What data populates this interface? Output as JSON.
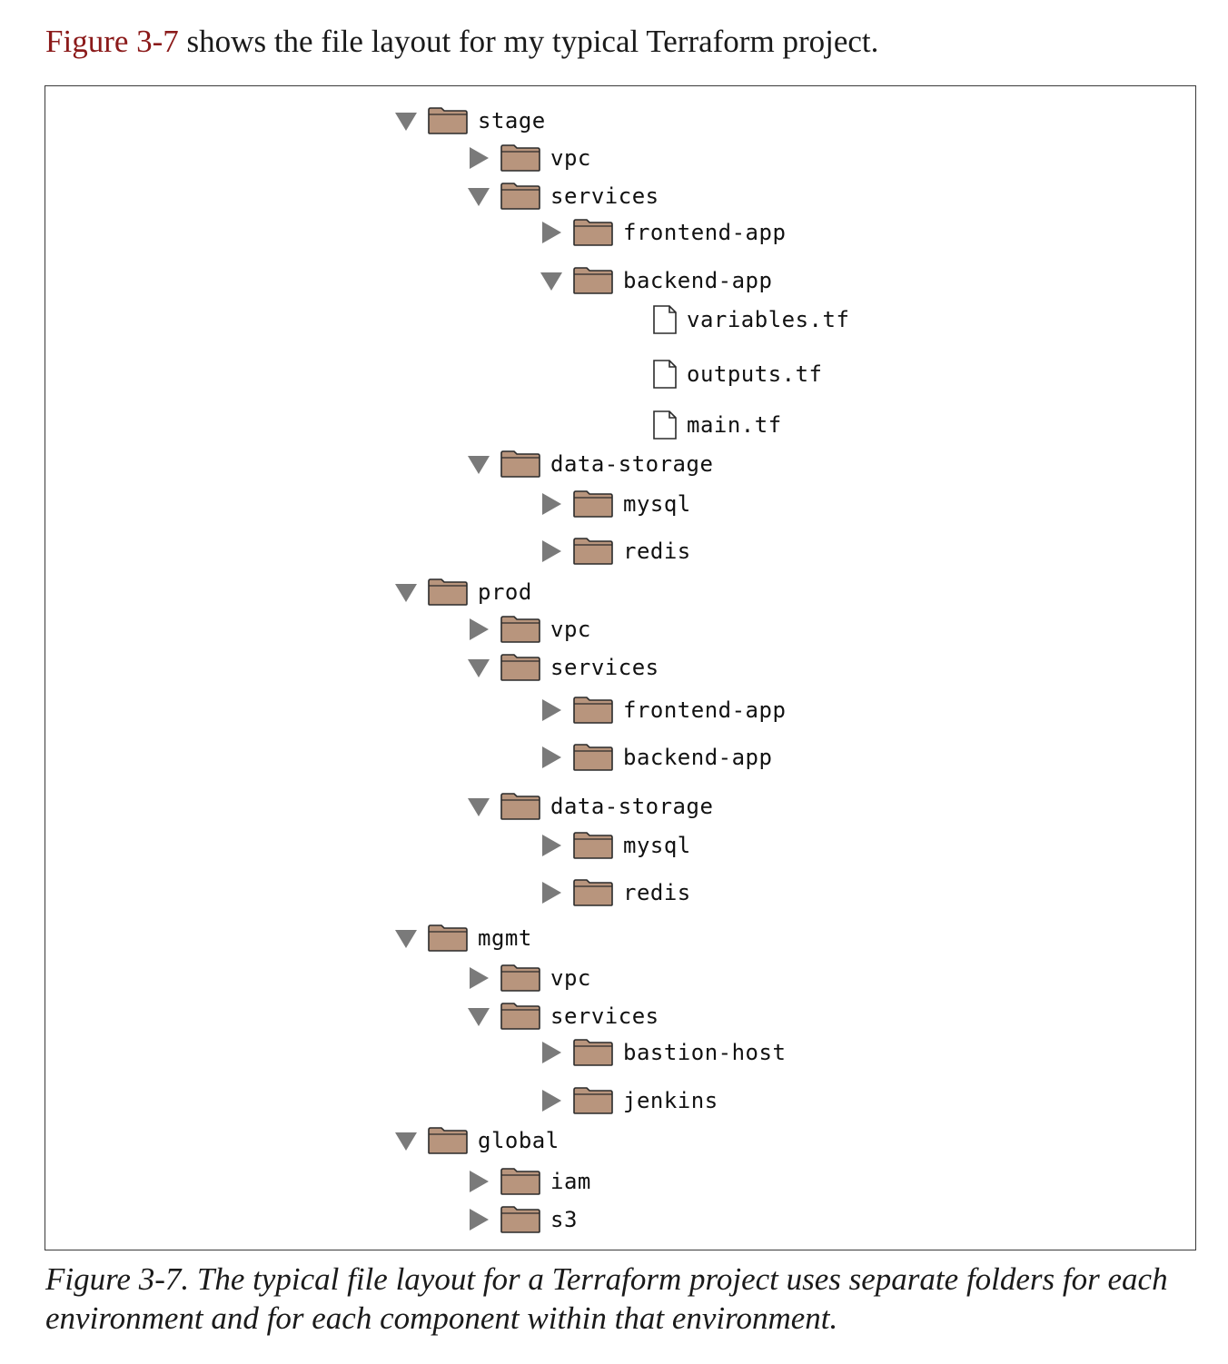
{
  "intro": {
    "figure_ref": "Figure 3-7",
    "text": " shows the file layout for my typical Terraform project."
  },
  "colors": {
    "folder_fill": "#b8957d",
    "folder_stroke": "#2b2b2b",
    "triangle": "#7a7a7a",
    "xref": "#8b1a1a"
  },
  "tree": [
    {
      "label": "stage",
      "type": "folder",
      "state": "expanded",
      "depth": 0,
      "icon": "folder-icon"
    },
    {
      "label": "vpc",
      "type": "folder",
      "state": "collapsed",
      "depth": 1,
      "icon": "folder-icon"
    },
    {
      "label": "services",
      "type": "folder",
      "state": "expanded",
      "depth": 1,
      "icon": "folder-icon"
    },
    {
      "label": "frontend-app",
      "type": "folder",
      "state": "collapsed",
      "depth": 2,
      "icon": "folder-icon"
    },
    {
      "label": "backend-app",
      "type": "folder",
      "state": "expanded",
      "depth": 2,
      "icon": "folder-icon"
    },
    {
      "label": "variables.tf",
      "type": "file",
      "depth": 3,
      "icon": "file-icon"
    },
    {
      "label": "outputs.tf",
      "type": "file",
      "depth": 3,
      "icon": "file-icon"
    },
    {
      "label": "main.tf",
      "type": "file",
      "depth": 3,
      "icon": "file-icon"
    },
    {
      "label": "data-storage",
      "type": "folder",
      "state": "expanded",
      "depth": 1,
      "icon": "folder-icon"
    },
    {
      "label": "mysql",
      "type": "folder",
      "state": "collapsed",
      "depth": 2,
      "icon": "folder-icon"
    },
    {
      "label": "redis",
      "type": "folder",
      "state": "collapsed",
      "depth": 2,
      "icon": "folder-icon"
    },
    {
      "label": "prod",
      "type": "folder",
      "state": "expanded",
      "depth": 0,
      "icon": "folder-icon"
    },
    {
      "label": "vpc",
      "type": "folder",
      "state": "collapsed",
      "depth": 1,
      "icon": "folder-icon"
    },
    {
      "label": "services",
      "type": "folder",
      "state": "expanded",
      "depth": 1,
      "icon": "folder-icon"
    },
    {
      "label": "frontend-app",
      "type": "folder",
      "state": "collapsed",
      "depth": 2,
      "icon": "folder-icon"
    },
    {
      "label": "backend-app",
      "type": "folder",
      "state": "collapsed",
      "depth": 2,
      "icon": "folder-icon"
    },
    {
      "label": "data-storage",
      "type": "folder",
      "state": "expanded",
      "depth": 1,
      "icon": "folder-icon"
    },
    {
      "label": "mysql",
      "type": "folder",
      "state": "collapsed",
      "depth": 2,
      "icon": "folder-icon"
    },
    {
      "label": "redis",
      "type": "folder",
      "state": "collapsed",
      "depth": 2,
      "icon": "folder-icon"
    },
    {
      "label": "mgmt",
      "type": "folder",
      "state": "expanded",
      "depth": 0,
      "icon": "folder-icon"
    },
    {
      "label": "vpc",
      "type": "folder",
      "state": "collapsed",
      "depth": 1,
      "icon": "folder-icon"
    },
    {
      "label": "services",
      "type": "folder",
      "state": "expanded",
      "depth": 1,
      "icon": "folder-icon"
    },
    {
      "label": "bastion-host",
      "type": "folder",
      "state": "collapsed",
      "depth": 2,
      "icon": "folder-icon"
    },
    {
      "label": "jenkins",
      "type": "folder",
      "state": "collapsed",
      "depth": 2,
      "icon": "folder-icon"
    },
    {
      "label": "global",
      "type": "folder",
      "state": "expanded",
      "depth": 0,
      "icon": "folder-icon"
    },
    {
      "label": "iam",
      "type": "folder",
      "state": "collapsed",
      "depth": 1,
      "icon": "folder-icon"
    },
    {
      "label": "s3",
      "type": "folder",
      "state": "collapsed",
      "depth": 1,
      "icon": "folder-icon"
    }
  ],
  "caption": {
    "line1": "Figure 3-7. The typical file layout for a Terraform project uses separate folders for each",
    "line2": "environment and for each component within that environment."
  }
}
